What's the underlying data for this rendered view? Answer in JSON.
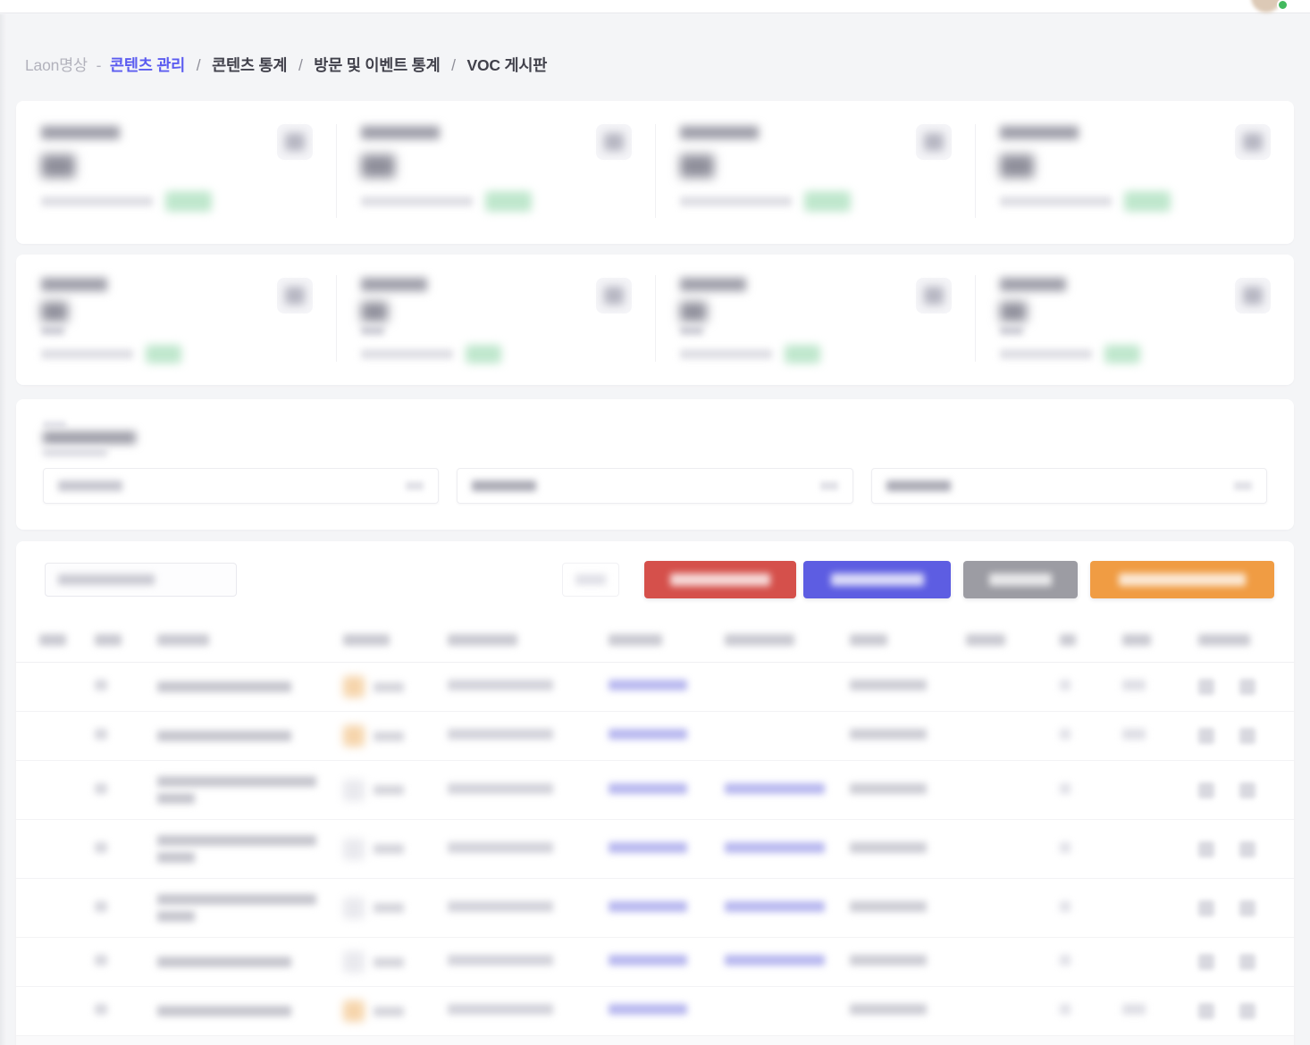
{
  "topbar": {
    "avatar_status_color": "#43b95e"
  },
  "breadcrumb": {
    "app_label": "Laon명상",
    "dash": "-",
    "active_item": "콘텐츠 관리",
    "active_color": "#5b5cf0",
    "separator": "/",
    "items": [
      "콘텐츠 통계",
      "방문 및 이벤트 통계",
      "VOC 게시판"
    ]
  },
  "summary": {
    "redacted": true,
    "row1_cards": 4,
    "row2_cards": 4,
    "trend_badge_color": "#bfe7cd"
  },
  "filter": {
    "redacted": true,
    "fields": [
      {
        "style": "light"
      },
      {
        "style": "dark"
      },
      {
        "style": "dark"
      }
    ]
  },
  "toolbar": {
    "redacted": true,
    "buttons": [
      {
        "id": "button-red",
        "color": "#d5504b"
      },
      {
        "id": "button-blue",
        "color": "#5d5de2"
      },
      {
        "id": "button-gray",
        "color": "#9c9ca3"
      },
      {
        "id": "button-orange",
        "color": "#f09c43"
      }
    ]
  },
  "table": {
    "redacted": true,
    "header_column_count": 12,
    "link_color": "#b7b7ef",
    "status_badge_color": "#b3e2c4",
    "badge_colors": {
      "orange": "#f6d5ac",
      "gray": "#e9e9ee"
    },
    "rows": [
      {
        "badge": "orange",
        "title_lines": 1,
        "links": 1,
        "col_b": true
      },
      {
        "badge": "orange",
        "title_lines": 1,
        "links": 1,
        "col_b": true
      },
      {
        "badge": "gray",
        "title_lines": 2,
        "links": 2,
        "col_b": false
      },
      {
        "badge": "gray",
        "title_lines": 2,
        "links": 2,
        "col_b": false
      },
      {
        "badge": "gray",
        "title_lines": 2,
        "links": 2,
        "col_b": false
      },
      {
        "badge": "gray",
        "title_lines": 1,
        "links": 2,
        "col_b": false
      },
      {
        "badge": "orange",
        "title_lines": 1,
        "links": 1,
        "col_b": true
      }
    ]
  }
}
